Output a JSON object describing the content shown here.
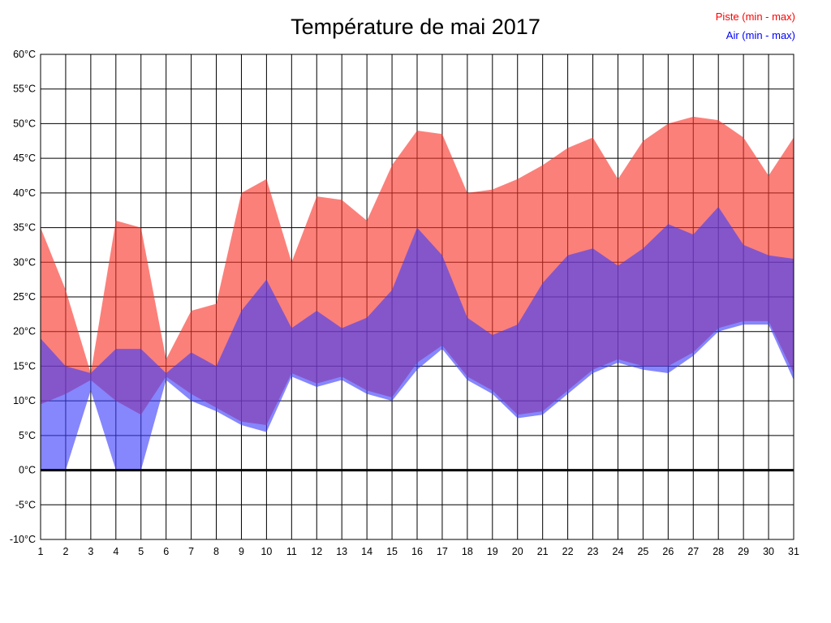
{
  "title": "Température de mai 2017",
  "legend": {
    "piste": {
      "label": "Piste (min - max)",
      "color": "#ff0000"
    },
    "air": {
      "label": "Air (min - max)",
      "color": "#0000ff"
    }
  },
  "colors": {
    "background": "#ffffff",
    "grid": "#000000",
    "zero_line": "#000000",
    "plot_border": "#000000",
    "piste_fill": "rgba(248,50,40,0.62)",
    "air_fill": "rgba(60,60,252,0.62)"
  },
  "chart_data": {
    "type": "area",
    "title": "Température de mai 2017",
    "xlabel": "",
    "ylabel": "",
    "legend_position": "top-right",
    "grid": true,
    "x": [
      1,
      2,
      3,
      4,
      5,
      6,
      7,
      8,
      9,
      10,
      11,
      12,
      13,
      14,
      15,
      16,
      17,
      18,
      19,
      20,
      21,
      22,
      23,
      24,
      25,
      26,
      27,
      28,
      29,
      30,
      31
    ],
    "x_tick_labels": [
      "1",
      "2",
      "3",
      "4",
      "5",
      "6",
      "7",
      "8",
      "9",
      "10",
      "11",
      "12",
      "13",
      "14",
      "15",
      "16",
      "17",
      "18",
      "19",
      "20",
      "21",
      "22",
      "23",
      "24",
      "25",
      "26",
      "27",
      "28",
      "29",
      "30",
      "31"
    ],
    "ylim": [
      -10,
      60
    ],
    "y_tick_step": 5,
    "y_tick_labels": [
      "60°C",
      "55°C",
      "50°C",
      "45°C",
      "40°C",
      "35°C",
      "30°C",
      "25°C",
      "20°C",
      "15°C",
      "10°C",
      "5°C",
      "0°C",
      "-5°C",
      "-10°C"
    ],
    "series": [
      {
        "id": "piste",
        "name": "Piste (min - max)",
        "color": "#ff0000",
        "fill": "rgba(248,50,40,0.62)",
        "max": [
          35,
          26,
          14,
          36,
          35,
          16,
          23,
          24,
          40,
          42,
          30,
          39.5,
          39,
          36,
          44,
          49,
          48.5,
          40,
          40.5,
          42,
          44,
          46.5,
          48,
          42,
          47.5,
          50,
          51,
          50.5,
          48,
          42.5,
          48
        ],
        "min": [
          9.5,
          11,
          13,
          10,
          8,
          13.5,
          11,
          9,
          7,
          6.5,
          14,
          12.5,
          13.5,
          11.5,
          10.5,
          15.5,
          18,
          13.5,
          11.5,
          8,
          8.5,
          11.5,
          14.5,
          16,
          15,
          15,
          17,
          20.5,
          21.5,
          21.5,
          14
        ]
      },
      {
        "id": "air",
        "name": "Air (min - max)",
        "color": "#0000ff",
        "fill": "rgba(60,60,252,0.62)",
        "max": [
          19,
          15,
          14,
          17.5,
          17.5,
          14,
          17,
          15,
          23,
          27.5,
          20.5,
          23,
          20.5,
          22,
          26,
          35,
          31,
          22,
          19.5,
          21,
          27,
          31,
          32,
          29.5,
          32,
          35.5,
          34,
          38,
          32.5,
          31,
          30.5
        ],
        "min": [
          0,
          0,
          11.5,
          0,
          0,
          13,
          10,
          8.5,
          6.5,
          5.5,
          13.5,
          12,
          13,
          11,
          10,
          14.5,
          17.5,
          13,
          11,
          7.5,
          8,
          11,
          14,
          15.5,
          14.5,
          14,
          16.5,
          20,
          21,
          21,
          13
        ]
      }
    ]
  }
}
